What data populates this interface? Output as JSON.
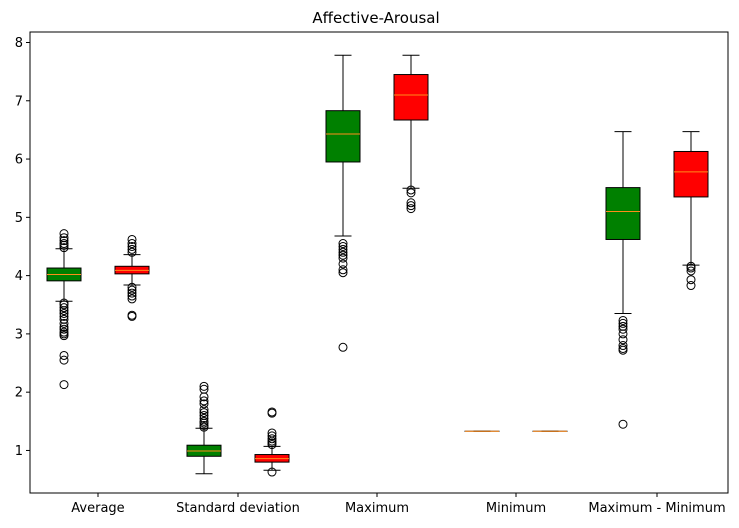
{
  "chart_data": {
    "type": "box",
    "title": "Affective-Arousal",
    "xlabel": "",
    "ylabel": "",
    "ylim": [
      0.27,
      8.18
    ],
    "yticks": [
      1,
      2,
      3,
      4,
      5,
      6,
      7,
      8
    ],
    "categories": [
      "Average",
      "Standard deviation",
      "Maximum",
      "Minimum",
      "Maximum - Minimum"
    ],
    "series_colors": [
      "#008000",
      "#ff0000"
    ],
    "median_color": "#ff8c1a",
    "boxes": [
      {
        "category": "Average",
        "series": 0,
        "whislo": 3.56,
        "q1": 3.91,
        "med": 4.02,
        "q3": 4.13,
        "whishi": 4.46,
        "fliers": [
          2.13,
          2.55,
          2.63,
          2.97,
          3.0,
          3.03,
          3.08,
          3.12,
          3.18,
          3.25,
          3.3,
          3.35,
          3.4,
          3.45,
          3.5,
          3.53,
          4.48,
          4.52,
          4.55,
          4.6,
          4.65,
          4.72
        ]
      },
      {
        "category": "Average",
        "series": 1,
        "whislo": 3.84,
        "q1": 4.03,
        "med": 4.09,
        "q3": 4.16,
        "whishi": 4.36,
        "fliers": [
          3.3,
          3.32,
          3.6,
          3.65,
          3.7,
          3.75,
          3.8,
          4.4,
          4.45,
          4.5,
          4.55,
          4.62
        ]
      },
      {
        "category": "Standard deviation",
        "series": 0,
        "whislo": 0.6,
        "q1": 0.9,
        "med": 0.99,
        "q3": 1.09,
        "whishi": 1.38,
        "fliers": [
          1.4,
          1.43,
          1.47,
          1.5,
          1.55,
          1.6,
          1.65,
          1.7,
          1.8,
          1.85,
          1.92,
          2.05,
          2.1
        ]
      },
      {
        "category": "Standard deviation",
        "series": 1,
        "whislo": 0.66,
        "q1": 0.8,
        "med": 0.86,
        "q3": 0.93,
        "whishi": 1.07,
        "fliers": [
          0.63,
          1.1,
          1.13,
          1.16,
          1.2,
          1.25,
          1.3,
          1.64,
          1.66
        ]
      },
      {
        "category": "Maximum",
        "series": 0,
        "whislo": 4.68,
        "q1": 5.95,
        "med": 6.43,
        "q3": 6.83,
        "whishi": 7.78,
        "fliers": [
          2.77,
          4.05,
          4.1,
          4.2,
          4.3,
          4.35,
          4.4,
          4.45,
          4.5,
          4.55
        ]
      },
      {
        "category": "Maximum",
        "series": 1,
        "whislo": 5.5,
        "q1": 6.67,
        "med": 7.1,
        "q3": 7.45,
        "whishi": 7.78,
        "fliers": [
          5.15,
          5.2,
          5.25,
          5.42,
          5.47
        ]
      },
      {
        "category": "Minimum",
        "series": 0,
        "whislo": 1.33,
        "q1": 1.33,
        "med": 1.33,
        "q3": 1.33,
        "whishi": 1.33,
        "fliers": []
      },
      {
        "category": "Minimum",
        "series": 1,
        "whislo": 1.33,
        "q1": 1.33,
        "med": 1.33,
        "q3": 1.33,
        "whishi": 1.33,
        "fliers": []
      },
      {
        "category": "Maximum - Minimum",
        "series": 0,
        "whislo": 3.35,
        "q1": 4.62,
        "med": 5.1,
        "q3": 5.51,
        "whishi": 6.47,
        "fliers": [
          1.45,
          2.72,
          2.75,
          2.8,
          2.9,
          3.0,
          3.08,
          3.13,
          3.18,
          3.23
        ]
      },
      {
        "category": "Maximum - Minimum",
        "series": 1,
        "whislo": 4.18,
        "q1": 5.35,
        "med": 5.78,
        "q3": 6.13,
        "whishi": 6.47,
        "fliers": [
          3.83,
          3.93,
          4.08,
          4.13,
          4.16
        ]
      }
    ],
    "grid": false,
    "legend": "none"
  }
}
